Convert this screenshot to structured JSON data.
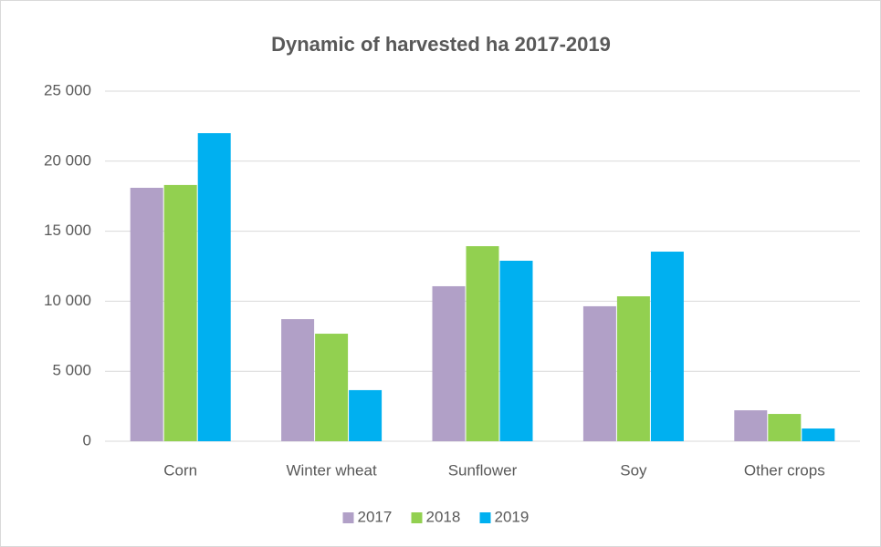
{
  "chart_data": {
    "type": "bar",
    "title": "Dynamic of harvested ha 2017-2019",
    "categories": [
      "Corn",
      "Winter wheat",
      "Sunflower",
      "Soy",
      "Other crops"
    ],
    "series": [
      {
        "name": "2017",
        "color": "#b1a0c7",
        "values": [
          18100,
          8720,
          11070,
          9640,
          2210
        ]
      },
      {
        "name": "2018",
        "color": "#92d050",
        "values": [
          18300,
          7680,
          13930,
          10350,
          1950
        ]
      },
      {
        "name": "2019",
        "color": "#00b0f0",
        "values": [
          22000,
          3650,
          12890,
          13540,
          910
        ]
      }
    ],
    "ylim": [
      0,
      25000
    ],
    "yticks": [
      0,
      {
        "value": 5000,
        "label": "5 000"
      },
      {
        "value": 10000,
        "label": "10 000"
      },
      {
        "value": 15000,
        "label": "15 000"
      },
      {
        "value": 20000,
        "label": "20 000"
      },
      {
        "value": 25000,
        "label": "25 000"
      }
    ],
    "grid": true,
    "legend": "bottom"
  }
}
